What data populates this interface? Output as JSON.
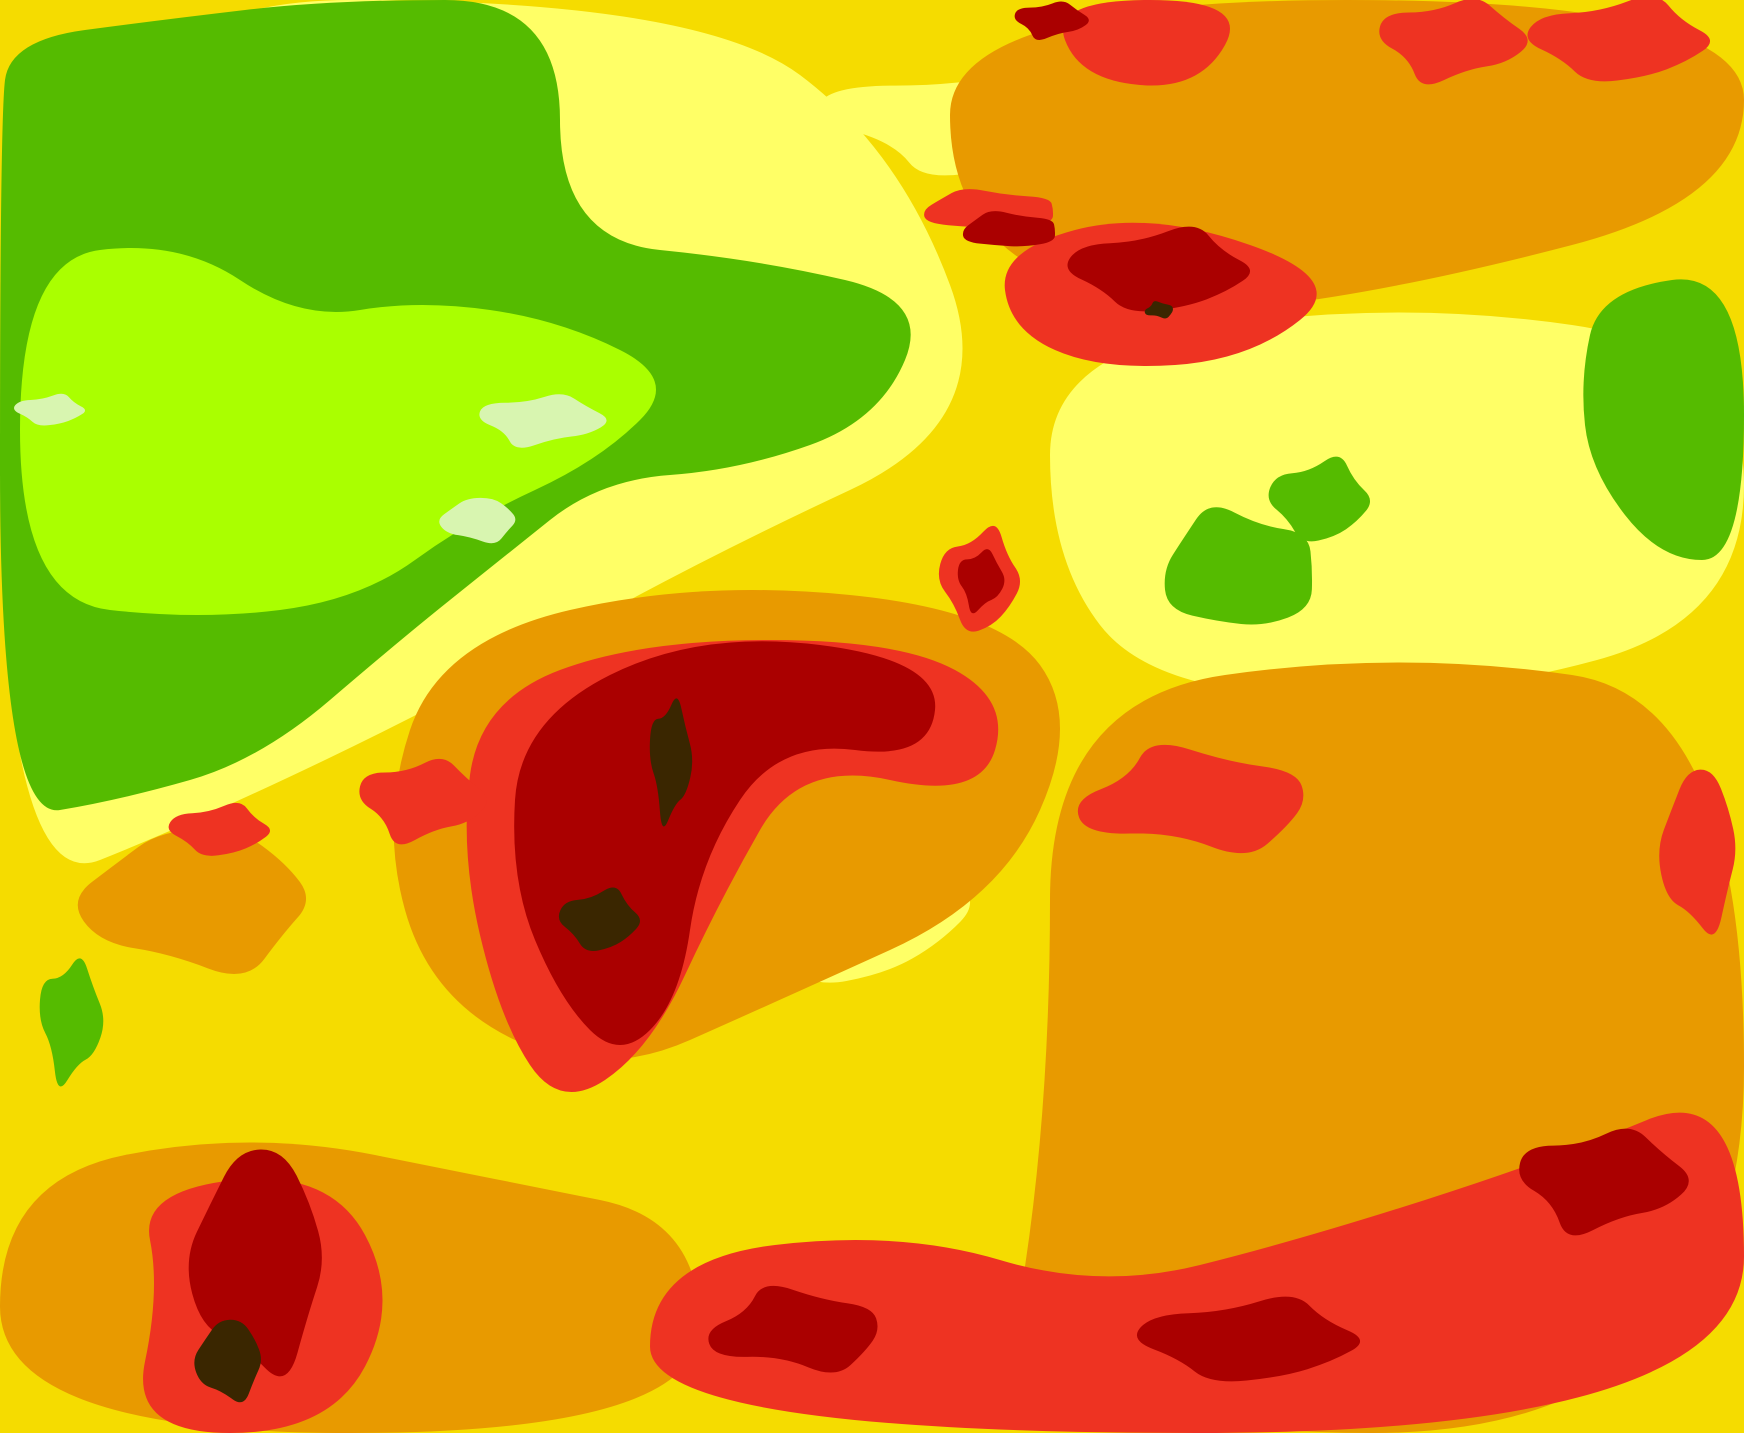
{
  "map": {
    "type": "filled-contour",
    "palette": {
      "lightest_green": "#d8f5b0",
      "lime": "#aaff00",
      "green": "#55bb00",
      "light_yellow": "#ffff66",
      "yellow": "#f5dc00",
      "orange": "#e89a00",
      "red": "#ee3322",
      "dark_red": "#aa0000",
      "darkest": "#3a2600"
    }
  }
}
